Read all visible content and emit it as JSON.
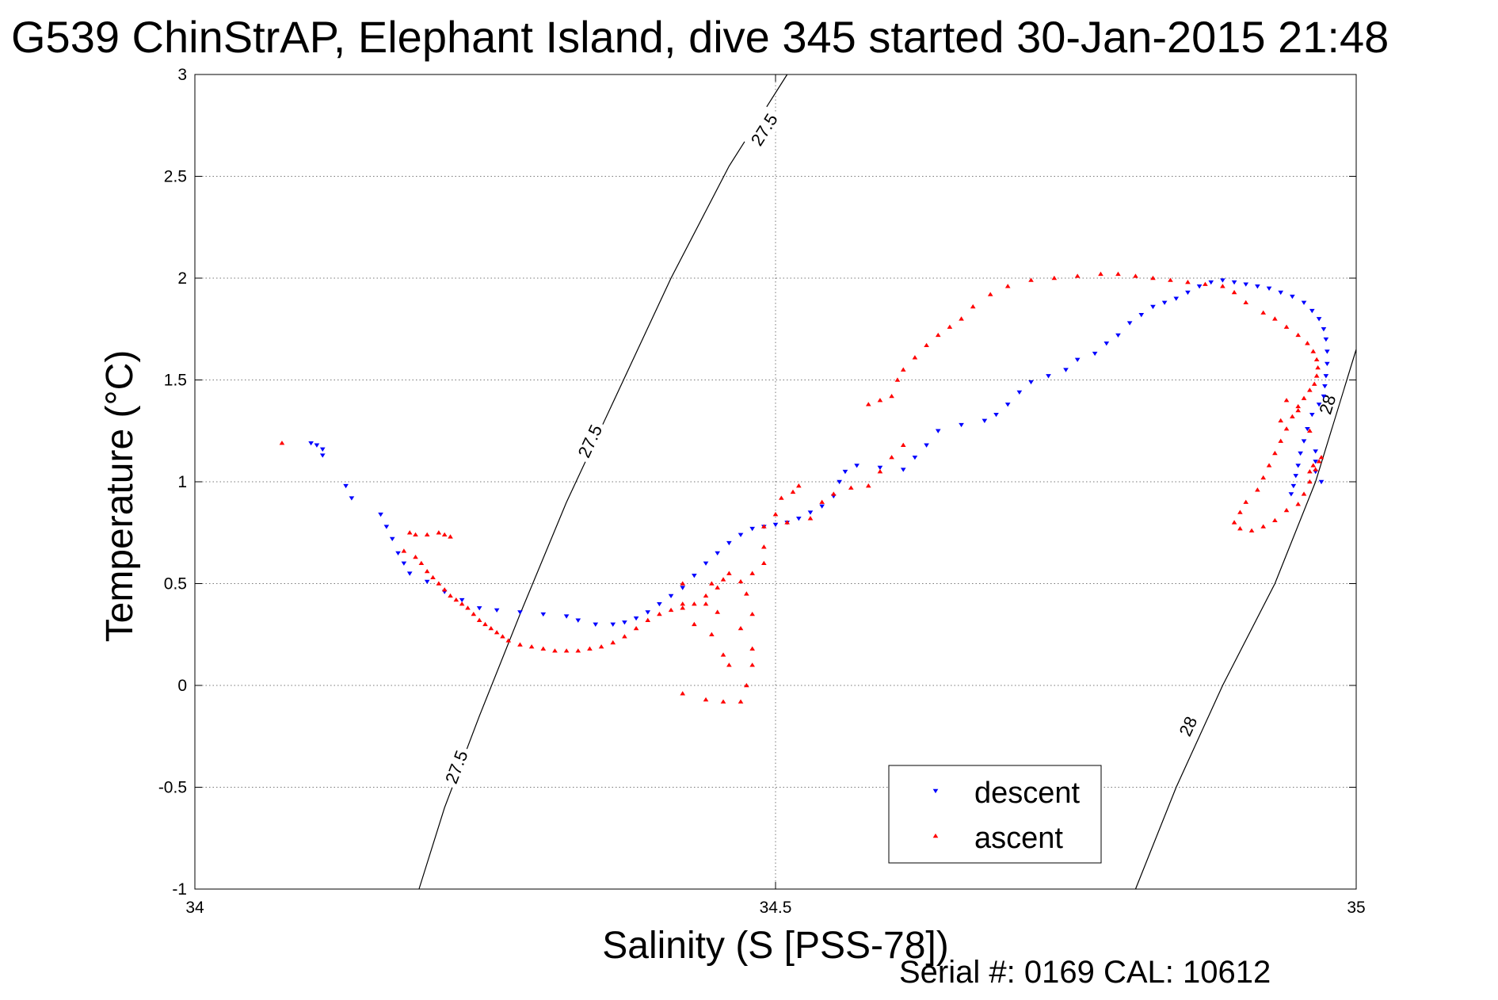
{
  "chart_data": {
    "type": "scatter",
    "title": "G539 ChinStrAP, Elephant Island, dive 345 started 30-Jan-2015 21:48",
    "xlabel": "Salinity (S [PSS-78])",
    "ylabel": "Temperature (°C)",
    "footer": "Serial #: 0169 CAL: 10612",
    "xlim": [
      34,
      35
    ],
    "ylim": [
      -1,
      3
    ],
    "xticks": [
      34,
      34.5,
      35
    ],
    "xtick_labels": [
      "34",
      "34.5",
      "35"
    ],
    "yticks": [
      -1,
      -0.5,
      0,
      0.5,
      1,
      1.5,
      2,
      2.5,
      3
    ],
    "ytick_labels": [
      "-1",
      "-0.5",
      "0",
      "0.5",
      "1",
      "1.5",
      "2",
      "2.5",
      "3"
    ],
    "grid": true,
    "legend_position": "bottom-right",
    "isopycnals": [
      {
        "label": "27.5",
        "points": [
          [
            34.193,
            -1.0
          ],
          [
            34.215,
            -0.6
          ],
          [
            34.245,
            -0.15
          ],
          [
            34.28,
            0.35
          ],
          [
            34.32,
            0.9
          ],
          [
            34.365,
            1.45
          ],
          [
            34.41,
            2.0
          ],
          [
            34.46,
            2.55
          ],
          [
            34.51,
            3.0
          ]
        ],
        "label_points": [
          [
            34.225,
            -0.4
          ],
          [
            34.34,
            1.2
          ],
          [
            34.49,
            2.73
          ]
        ]
      },
      {
        "label": "28",
        "points": [
          [
            34.81,
            -1.0
          ],
          [
            34.845,
            -0.5
          ],
          [
            34.885,
            0.0
          ],
          [
            34.93,
            0.5
          ],
          [
            34.965,
            1.0
          ],
          [
            35.0,
            1.65
          ]
        ],
        "label_points": [
          [
            34.855,
            -0.2
          ],
          [
            34.975,
            1.38
          ]
        ]
      }
    ],
    "series": [
      {
        "name": "descent",
        "color": "#0000ff",
        "marker": "triangle-down",
        "points": [
          [
            34.1,
            1.19
          ],
          [
            34.105,
            1.18
          ],
          [
            34.11,
            1.16
          ],
          [
            34.11,
            1.13
          ],
          [
            34.13,
            0.98
          ],
          [
            34.135,
            0.92
          ],
          [
            34.16,
            0.84
          ],
          [
            34.165,
            0.78
          ],
          [
            34.17,
            0.72
          ],
          [
            34.175,
            0.65
          ],
          [
            34.18,
            0.6
          ],
          [
            34.185,
            0.55
          ],
          [
            34.2,
            0.51
          ],
          [
            34.215,
            0.46
          ],
          [
            34.23,
            0.42
          ],
          [
            34.245,
            0.38
          ],
          [
            34.26,
            0.37
          ],
          [
            34.28,
            0.36
          ],
          [
            34.3,
            0.35
          ],
          [
            34.32,
            0.34
          ],
          [
            34.33,
            0.32
          ],
          [
            34.345,
            0.3
          ],
          [
            34.36,
            0.3
          ],
          [
            34.37,
            0.31
          ],
          [
            34.38,
            0.33
          ],
          [
            34.39,
            0.36
          ],
          [
            34.4,
            0.4
          ],
          [
            34.41,
            0.44
          ],
          [
            34.42,
            0.48
          ],
          [
            34.43,
            0.54
          ],
          [
            34.44,
            0.6
          ],
          [
            34.45,
            0.65
          ],
          [
            34.46,
            0.7
          ],
          [
            34.47,
            0.74
          ],
          [
            34.48,
            0.77
          ],
          [
            34.49,
            0.78
          ],
          [
            34.5,
            0.79
          ],
          [
            34.51,
            0.8
          ],
          [
            34.52,
            0.82
          ],
          [
            34.53,
            0.85
          ],
          [
            34.54,
            0.88
          ],
          [
            34.55,
            0.93
          ],
          [
            34.555,
            1.0
          ],
          [
            34.56,
            1.05
          ],
          [
            34.57,
            1.08
          ],
          [
            34.59,
            1.07
          ],
          [
            34.61,
            1.06
          ],
          [
            34.62,
            1.12
          ],
          [
            34.63,
            1.18
          ],
          [
            34.64,
            1.25
          ],
          [
            34.66,
            1.28
          ],
          [
            34.68,
            1.3
          ],
          [
            34.69,
            1.33
          ],
          [
            34.7,
            1.38
          ],
          [
            34.71,
            1.44
          ],
          [
            34.72,
            1.49
          ],
          [
            34.735,
            1.52
          ],
          [
            34.75,
            1.55
          ],
          [
            34.76,
            1.6
          ],
          [
            34.775,
            1.63
          ],
          [
            34.785,
            1.68
          ],
          [
            34.795,
            1.72
          ],
          [
            34.805,
            1.78
          ],
          [
            34.815,
            1.82
          ],
          [
            34.825,
            1.86
          ],
          [
            34.835,
            1.88
          ],
          [
            34.845,
            1.9
          ],
          [
            34.855,
            1.93
          ],
          [
            34.865,
            1.96
          ],
          [
            34.875,
            1.98
          ],
          [
            34.885,
            1.99
          ],
          [
            34.895,
            1.98
          ],
          [
            34.905,
            1.97
          ],
          [
            34.915,
            1.96
          ],
          [
            34.925,
            1.95
          ],
          [
            34.935,
            1.93
          ],
          [
            34.945,
            1.91
          ],
          [
            34.955,
            1.88
          ],
          [
            34.962,
            1.84
          ],
          [
            34.968,
            1.8
          ],
          [
            34.972,
            1.75
          ],
          [
            34.974,
            1.7
          ],
          [
            34.975,
            1.64
          ],
          [
            34.975,
            1.58
          ],
          [
            34.974,
            1.52
          ],
          [
            34.973,
            1.47
          ],
          [
            34.972,
            1.42
          ],
          [
            34.968,
            1.38
          ],
          [
            34.962,
            1.33
          ],
          [
            34.958,
            1.26
          ],
          [
            34.955,
            1.2
          ],
          [
            34.952,
            1.14
          ],
          [
            34.95,
            1.08
          ],
          [
            34.948,
            1.03
          ],
          [
            34.946,
            0.98
          ],
          [
            34.944,
            0.94
          ],
          [
            34.965,
            1.05
          ],
          [
            34.965,
            1.1
          ],
          [
            34.965,
            1.15
          ],
          [
            34.97,
            1.0
          ]
        ]
      },
      {
        "name": "ascent",
        "color": "#ff0000",
        "marker": "triangle-up",
        "points": [
          [
            34.075,
            1.19
          ],
          [
            34.185,
            0.75
          ],
          [
            34.19,
            0.74
          ],
          [
            34.2,
            0.74
          ],
          [
            34.21,
            0.75
          ],
          [
            34.215,
            0.74
          ],
          [
            34.22,
            0.73
          ],
          [
            34.18,
            0.66
          ],
          [
            34.19,
            0.63
          ],
          [
            34.195,
            0.6
          ],
          [
            34.2,
            0.56
          ],
          [
            34.205,
            0.53
          ],
          [
            34.21,
            0.5
          ],
          [
            34.215,
            0.47
          ],
          [
            34.22,
            0.44
          ],
          [
            34.225,
            0.42
          ],
          [
            34.23,
            0.4
          ],
          [
            34.235,
            0.38
          ],
          [
            34.24,
            0.35
          ],
          [
            34.245,
            0.32
          ],
          [
            34.25,
            0.3
          ],
          [
            34.255,
            0.28
          ],
          [
            34.26,
            0.26
          ],
          [
            34.265,
            0.24
          ],
          [
            34.27,
            0.22
          ],
          [
            34.28,
            0.2
          ],
          [
            34.29,
            0.19
          ],
          [
            34.3,
            0.18
          ],
          [
            34.31,
            0.17
          ],
          [
            34.32,
            0.17
          ],
          [
            34.33,
            0.17
          ],
          [
            34.34,
            0.18
          ],
          [
            34.35,
            0.19
          ],
          [
            34.36,
            0.21
          ],
          [
            34.37,
            0.24
          ],
          [
            34.38,
            0.28
          ],
          [
            34.39,
            0.32
          ],
          [
            34.4,
            0.35
          ],
          [
            34.41,
            0.37
          ],
          [
            34.42,
            0.38
          ],
          [
            34.43,
            0.4
          ],
          [
            34.44,
            0.44
          ],
          [
            34.45,
            0.48
          ],
          [
            34.455,
            0.52
          ],
          [
            34.46,
            0.55
          ],
          [
            34.45,
            0.36
          ],
          [
            34.445,
            0.25
          ],
          [
            34.455,
            0.15
          ],
          [
            34.46,
            0.1
          ],
          [
            34.42,
            0.5
          ],
          [
            34.44,
            0.4
          ],
          [
            34.445,
            0.5
          ],
          [
            34.43,
            0.3
          ],
          [
            34.47,
            0.51
          ],
          [
            34.42,
            0.4
          ],
          [
            34.42,
            -0.04
          ],
          [
            34.44,
            -0.07
          ],
          [
            34.455,
            -0.08
          ],
          [
            34.47,
            -0.08
          ],
          [
            34.475,
            0.0
          ],
          [
            34.48,
            0.1
          ],
          [
            34.48,
            0.18
          ],
          [
            34.47,
            0.28
          ],
          [
            34.48,
            0.35
          ],
          [
            34.475,
            0.45
          ],
          [
            34.48,
            0.55
          ],
          [
            34.49,
            0.6
          ],
          [
            34.49,
            0.68
          ],
          [
            34.49,
            0.78
          ],
          [
            34.5,
            0.84
          ],
          [
            34.505,
            0.92
          ],
          [
            34.515,
            0.95
          ],
          [
            34.52,
            0.98
          ],
          [
            34.51,
            0.8
          ],
          [
            34.53,
            0.82
          ],
          [
            34.54,
            0.9
          ],
          [
            34.55,
            0.94
          ],
          [
            34.565,
            0.97
          ],
          [
            34.58,
            0.98
          ],
          [
            34.59,
            1.05
          ],
          [
            34.6,
            1.12
          ],
          [
            34.61,
            1.18
          ],
          [
            34.58,
            1.38
          ],
          [
            34.59,
            1.4
          ],
          [
            34.6,
            1.42
          ],
          [
            34.605,
            1.5
          ],
          [
            34.61,
            1.55
          ],
          [
            34.62,
            1.61
          ],
          [
            34.63,
            1.67
          ],
          [
            34.64,
            1.72
          ],
          [
            34.65,
            1.76
          ],
          [
            34.66,
            1.8
          ],
          [
            34.67,
            1.86
          ],
          [
            34.685,
            1.92
          ],
          [
            34.7,
            1.96
          ],
          [
            34.72,
            1.99
          ],
          [
            34.74,
            2.0
          ],
          [
            34.76,
            2.01
          ],
          [
            34.78,
            2.02
          ],
          [
            34.795,
            2.02
          ],
          [
            34.81,
            2.01
          ],
          [
            34.825,
            2.0
          ],
          [
            34.84,
            1.99
          ],
          [
            34.855,
            1.98
          ],
          [
            34.87,
            1.97
          ],
          [
            34.885,
            1.96
          ],
          [
            34.895,
            1.93
          ],
          [
            34.905,
            1.88
          ],
          [
            34.92,
            1.83
          ],
          [
            34.93,
            1.8
          ],
          [
            34.94,
            1.76
          ],
          [
            34.95,
            1.72
          ],
          [
            34.958,
            1.68
          ],
          [
            34.963,
            1.64
          ],
          [
            34.966,
            1.6
          ],
          [
            34.967,
            1.56
          ],
          [
            34.966,
            1.52
          ],
          [
            34.964,
            1.48
          ],
          [
            34.96,
            1.45
          ],
          [
            34.955,
            1.41
          ],
          [
            34.95,
            1.37
          ],
          [
            34.945,
            1.32
          ],
          [
            34.94,
            1.26
          ],
          [
            34.935,
            1.2
          ],
          [
            34.93,
            1.14
          ],
          [
            34.925,
            1.08
          ],
          [
            34.92,
            1.02
          ],
          [
            34.915,
            0.96
          ],
          [
            34.905,
            0.9
          ],
          [
            34.9,
            0.85
          ],
          [
            34.895,
            0.8
          ],
          [
            34.9,
            0.77
          ],
          [
            34.91,
            0.76
          ],
          [
            34.92,
            0.78
          ],
          [
            34.93,
            0.81
          ],
          [
            34.94,
            0.86
          ],
          [
            34.95,
            0.89
          ],
          [
            34.955,
            0.94
          ],
          [
            34.96,
            1.0
          ],
          [
            34.96,
            1.05
          ],
          [
            34.963,
            1.08
          ],
          [
            34.968,
            1.1
          ],
          [
            34.965,
            1.06
          ],
          [
            34.97,
            1.12
          ],
          [
            34.935,
            1.3
          ],
          [
            34.94,
            1.4
          ],
          [
            34.95,
            1.35
          ],
          [
            34.96,
            1.25
          ]
        ]
      }
    ]
  }
}
